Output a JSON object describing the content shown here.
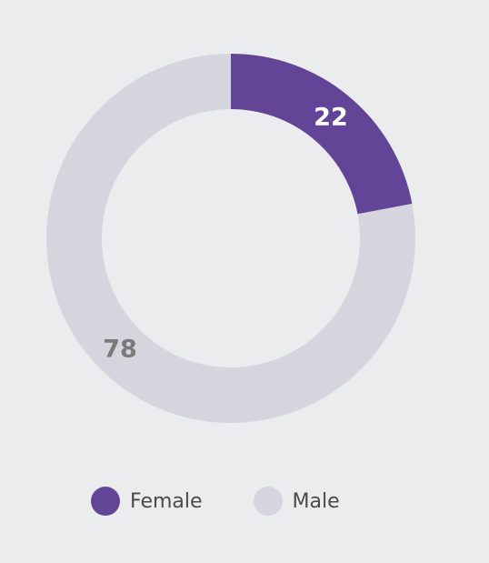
{
  "chart_data": {
    "type": "pie",
    "variant": "donut",
    "categories": [
      "Female",
      "Male"
    ],
    "values": [
      22,
      78
    ],
    "data_labels": [
      "22",
      "78"
    ],
    "colors": [
      "#634597",
      "#d6d5de"
    ],
    "label_colors": [
      "#ffffff",
      "#7a7a7a"
    ],
    "start_angle_deg": 0,
    "direction": "clockwise",
    "legend_position": "bottom",
    "title": "",
    "xlabel": "",
    "ylabel": ""
  },
  "legend": {
    "items": [
      {
        "label": "Female",
        "color": "#634597"
      },
      {
        "label": "Male",
        "color": "#d6d5de"
      }
    ]
  }
}
